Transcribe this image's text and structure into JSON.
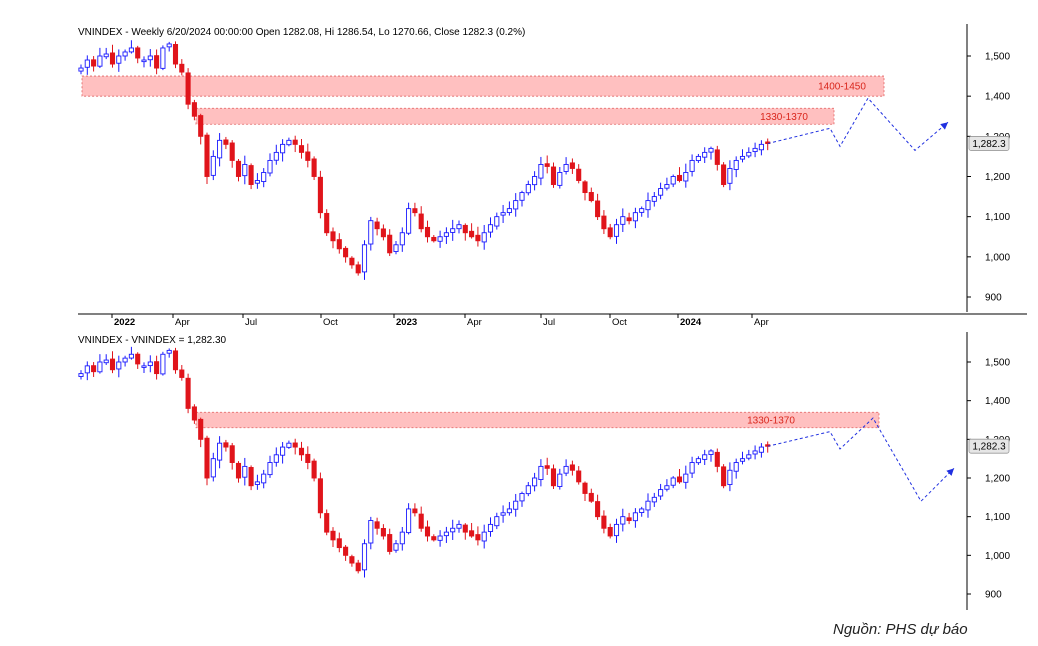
{
  "source_note": "Nguồn: PHS dự báo",
  "colors": {
    "up": "#1a1aff",
    "down": "#e0141b",
    "zone_fill": "#ffc0c0",
    "zone_label": "#d9261c",
    "forecast": "#2030e0"
  },
  "chart_data": [
    {
      "type": "candlestick",
      "title": "VNINDEX - Weekly 6/20/2024 00:00:00 Open 1282.08, Hi 1286.54, Lo 1270.66, Close 1282.3 (0.2%)",
      "y_ticks": [
        "1,500",
        "1,400",
        "1,300",
        "1,200",
        "1,100",
        "1,000",
        "900"
      ],
      "ylim": [
        850,
        1565
      ],
      "x_ticks": [
        "2022",
        "Apr",
        "Jul",
        "Oct",
        "2023",
        "Apr",
        "Jul",
        "Oct",
        "2024",
        "Apr"
      ],
      "last_price_label": "1,282.3",
      "zones": [
        {
          "label": "1400-1450",
          "low": 1400,
          "high": 1450
        },
        {
          "label": "1330-1370",
          "low": 1330,
          "high": 1370
        }
      ],
      "forecast_path": [
        1282,
        1320,
        1275,
        1395,
        1265,
        1335
      ],
      "closes": [
        1470,
        1490,
        1475,
        1500,
        1505,
        1480,
        1500,
        1510,
        1520,
        1495,
        1490,
        1500,
        1470,
        1520,
        1530,
        1480,
        1460,
        1380,
        1350,
        1300,
        1200,
        1250,
        1290,
        1280,
        1240,
        1200,
        1230,
        1180,
        1190,
        1210,
        1240,
        1260,
        1280,
        1290,
        1280,
        1260,
        1240,
        1200,
        1110,
        1060,
        1040,
        1020,
        1000,
        980,
        960,
        1030,
        1090,
        1070,
        1050,
        1010,
        1030,
        1060,
        1120,
        1110,
        1070,
        1050,
        1040,
        1050,
        1060,
        1070,
        1080,
        1060,
        1050,
        1040,
        1060,
        1080,
        1100,
        1110,
        1120,
        1140,
        1160,
        1180,
        1200,
        1230,
        1225,
        1180,
        1210,
        1230,
        1220,
        1190,
        1160,
        1140,
        1100,
        1070,
        1050,
        1080,
        1100,
        1090,
        1110,
        1120,
        1140,
        1150,
        1170,
        1180,
        1200,
        1190,
        1210,
        1240,
        1250,
        1260,
        1270,
        1230,
        1180,
        1220,
        1240,
        1250,
        1260,
        1270,
        1280,
        1282
      ]
    },
    {
      "type": "candlestick",
      "title": "VNINDEX - VNINDEX = 1,282.30",
      "y_ticks": [
        "1,500",
        "1,400",
        "1,300",
        "1,200",
        "1,100",
        "1,000",
        "900"
      ],
      "ylim": [
        850,
        1565
      ],
      "last_price_label": "1,282.3",
      "zones": [
        {
          "label": "1330-1370",
          "low": 1330,
          "high": 1370
        }
      ],
      "forecast_path": [
        1282,
        1320,
        1275,
        1355,
        1140,
        1225
      ],
      "closes": [
        1470,
        1490,
        1475,
        1500,
        1505,
        1480,
        1500,
        1510,
        1520,
        1495,
        1490,
        1500,
        1470,
        1520,
        1530,
        1480,
        1460,
        1380,
        1350,
        1300,
        1200,
        1250,
        1290,
        1280,
        1240,
        1200,
        1230,
        1180,
        1190,
        1210,
        1240,
        1260,
        1280,
        1290,
        1280,
        1260,
        1240,
        1200,
        1110,
        1060,
        1040,
        1020,
        1000,
        980,
        960,
        1030,
        1090,
        1070,
        1050,
        1010,
        1030,
        1060,
        1120,
        1110,
        1070,
        1050,
        1040,
        1050,
        1060,
        1070,
        1080,
        1060,
        1050,
        1040,
        1060,
        1080,
        1100,
        1110,
        1120,
        1140,
        1160,
        1180,
        1200,
        1230,
        1225,
        1180,
        1210,
        1230,
        1220,
        1190,
        1160,
        1140,
        1100,
        1070,
        1050,
        1080,
        1100,
        1090,
        1110,
        1120,
        1140,
        1150,
        1170,
        1180,
        1200,
        1190,
        1210,
        1240,
        1250,
        1260,
        1270,
        1230,
        1180,
        1220,
        1240,
        1250,
        1260,
        1270,
        1280,
        1282
      ]
    }
  ]
}
